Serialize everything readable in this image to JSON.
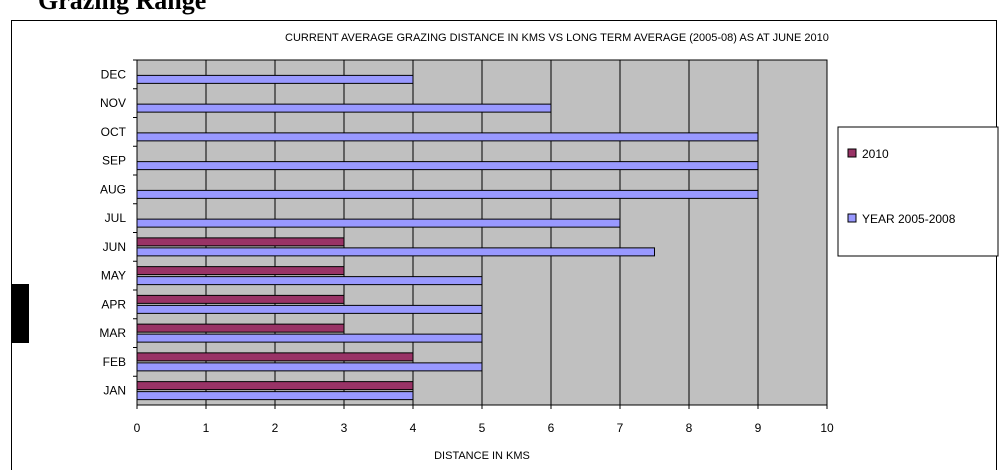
{
  "page_heading": "Grazing Range",
  "chart_data": {
    "type": "bar",
    "orientation": "horizontal",
    "title": "CURRENT AVERAGE GRAZING DISTANCE IN KMS VS LONG TERM AVERAGE (2005-08) AS AT JUNE 2010",
    "xlabel": "DISTANCE IN KMS",
    "ylabel": "",
    "xlim": [
      0,
      10
    ],
    "x_ticks": [
      "0",
      "1",
      "2",
      "3",
      "4",
      "5",
      "6",
      "7",
      "8",
      "9",
      "10"
    ],
    "grid": true,
    "legend_position": "right",
    "categories": [
      "JAN",
      "FEB",
      "MAR",
      "APR",
      "MAY",
      "JUN",
      "JUL",
      "AUG",
      "SEP",
      "OCT",
      "NOV",
      "DEC"
    ],
    "series": [
      {
        "name": "2010",
        "color": "#993366",
        "values": [
          4,
          4,
          3,
          3,
          3,
          3,
          null,
          null,
          null,
          null,
          null,
          null
        ]
      },
      {
        "name": "YEAR 2005-2008",
        "color": "#9999ff",
        "values": [
          4,
          5,
          5,
          5,
          5,
          7.5,
          7,
          9,
          9,
          9,
          6,
          4
        ]
      }
    ],
    "plot_background": "#c0c0c0"
  }
}
